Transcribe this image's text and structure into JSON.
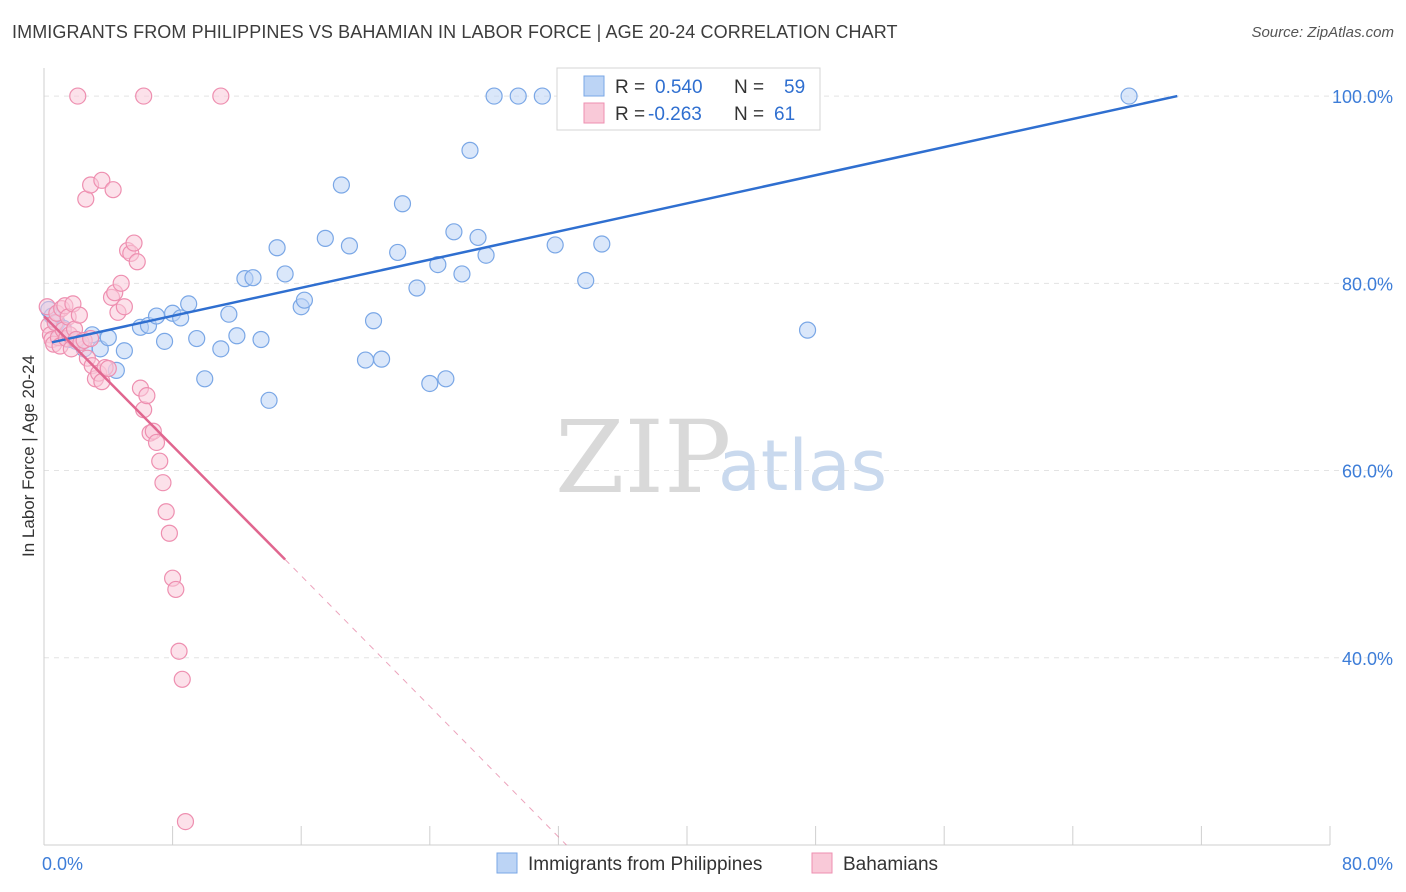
{
  "title": "IMMIGRANTS FROM PHILIPPINES VS BAHAMIAN IN LABOR FORCE | AGE 20-24 CORRELATION CHART",
  "source": "Source: ZipAtlas.com",
  "watermark": {
    "zip": "ZIP",
    "atlas": "atlas"
  },
  "colors": {
    "blue_fill": "#bcd4f5",
    "blue_stroke": "#7aa7e6",
    "blue_line": "#2f6fd0",
    "pink_fill": "#f9c9d8",
    "pink_stroke": "#ee8fb0",
    "pink_line": "#e0668f",
    "tick_text": "#3d7dd8",
    "grid": "#e3e3e3"
  },
  "legend": {
    "r_label": "R =",
    "n_label": "N =",
    "blue": {
      "r": "0.540",
      "n": "59"
    },
    "pink": {
      "r": "-0.263",
      "n": "61"
    }
  },
  "chart_data": {
    "type": "scatter",
    "xlabel": "",
    "ylabel": "In Labor Force | Age 20-24",
    "xlim": [
      0,
      80
    ],
    "ylim": [
      20,
      103
    ],
    "x_tick_labels": [
      {
        "value": 0,
        "label": "0.0%"
      },
      {
        "value": 80,
        "label": "80.0%"
      }
    ],
    "y_tick_labels": [
      {
        "value": 40,
        "label": "40.0%"
      },
      {
        "value": 60,
        "label": "60.0%"
      },
      {
        "value": 80,
        "label": "80.0%"
      },
      {
        "value": 100,
        "label": "100.0%"
      }
    ],
    "grid": true,
    "legend_position": "top-center",
    "series": [
      {
        "name": "Immigrants from Philippines",
        "color": "#bcd4f5",
        "r": 0.54,
        "n": 59,
        "trend": {
          "x0": 0.5,
          "y0": 73.7,
          "x1": 70.5,
          "y1": 100.0
        },
        "points": [
          [
            0.3,
            77.2
          ],
          [
            0.5,
            76.5
          ],
          [
            0.8,
            75.8
          ],
          [
            1.0,
            74.2
          ],
          [
            1.2,
            75.2
          ],
          [
            1.5,
            74.0
          ],
          [
            2.0,
            73.8
          ],
          [
            2.5,
            73.0
          ],
          [
            3.0,
            74.5
          ],
          [
            3.5,
            73.0
          ],
          [
            4.0,
            74.2
          ],
          [
            4.5,
            70.7
          ],
          [
            5.0,
            72.8
          ],
          [
            6.0,
            75.3
          ],
          [
            6.5,
            75.5
          ],
          [
            7.0,
            76.5
          ],
          [
            7.5,
            73.8
          ],
          [
            8.0,
            76.8
          ],
          [
            8.5,
            76.3
          ],
          [
            9.0,
            77.8
          ],
          [
            9.5,
            74.1
          ],
          [
            10.0,
            69.8
          ],
          [
            11.0,
            73.0
          ],
          [
            11.5,
            76.7
          ],
          [
            12.0,
            74.4
          ],
          [
            12.5,
            80.5
          ],
          [
            13.0,
            80.6
          ],
          [
            13.5,
            74.0
          ],
          [
            14.0,
            67.5
          ],
          [
            14.5,
            83.8
          ],
          [
            15.0,
            81.0
          ],
          [
            16.0,
            77.5
          ],
          [
            16.2,
            78.2
          ],
          [
            17.5,
            84.8
          ],
          [
            18.5,
            90.5
          ],
          [
            19.0,
            84.0
          ],
          [
            20.0,
            71.8
          ],
          [
            20.5,
            76.0
          ],
          [
            21.0,
            71.9
          ],
          [
            22.0,
            83.3
          ],
          [
            22.3,
            88.5
          ],
          [
            23.2,
            79.5
          ],
          [
            24.0,
            69.3
          ],
          [
            24.5,
            82.0
          ],
          [
            25.0,
            69.8
          ],
          [
            25.5,
            85.5
          ],
          [
            26.0,
            81.0
          ],
          [
            26.5,
            94.2
          ],
          [
            27.0,
            84.9
          ],
          [
            27.5,
            83.0
          ],
          [
            28.0,
            100.0
          ],
          [
            29.5,
            100.0
          ],
          [
            31.0,
            100.0
          ],
          [
            31.8,
            84.1
          ],
          [
            33.0,
            100.0
          ],
          [
            33.7,
            80.3
          ],
          [
            34.7,
            84.2
          ],
          [
            47.5,
            75.0
          ],
          [
            67.5,
            100.0
          ]
        ]
      },
      {
        "name": "Bahamians",
        "color": "#f9c9d8",
        "r": -0.263,
        "n": 61,
        "trend": {
          "x0": 0.0,
          "y0": 76.5,
          "x1": 15.0,
          "y1": 50.5
        },
        "trend_dashed": {
          "x0": 15.0,
          "y0": 50.5,
          "x1": 32.5,
          "y1": 20.0
        },
        "points": [
          [
            0.2,
            77.5
          ],
          [
            0.3,
            75.5
          ],
          [
            0.4,
            74.5
          ],
          [
            0.5,
            74.0
          ],
          [
            0.6,
            73.5
          ],
          [
            0.7,
            75.8
          ],
          [
            0.8,
            76.8
          ],
          [
            0.9,
            74.2
          ],
          [
            1.0,
            73.3
          ],
          [
            1.1,
            77.3
          ],
          [
            1.2,
            75.0
          ],
          [
            1.3,
            77.6
          ],
          [
            1.4,
            74.1
          ],
          [
            1.5,
            76.4
          ],
          [
            1.6,
            74.5
          ],
          [
            1.7,
            73.0
          ],
          [
            1.8,
            77.8
          ],
          [
            1.9,
            75.1
          ],
          [
            2.0,
            74.0
          ],
          [
            2.2,
            76.6
          ],
          [
            2.3,
            73.7
          ],
          [
            2.5,
            73.9
          ],
          [
            2.7,
            72.0
          ],
          [
            2.9,
            74.1
          ],
          [
            3.0,
            71.2
          ],
          [
            3.2,
            69.8
          ],
          [
            3.4,
            70.4
          ],
          [
            3.6,
            69.5
          ],
          [
            3.8,
            71.0
          ],
          [
            4.0,
            70.9
          ],
          [
            4.2,
            78.5
          ],
          [
            4.4,
            79.0
          ],
          [
            4.6,
            76.9
          ],
          [
            4.8,
            80.0
          ],
          [
            5.0,
            77.5
          ],
          [
            5.2,
            83.5
          ],
          [
            5.4,
            83.2
          ],
          [
            5.6,
            84.3
          ],
          [
            5.8,
            82.3
          ],
          [
            6.0,
            68.8
          ],
          [
            6.2,
            66.5
          ],
          [
            6.4,
            68.0
          ],
          [
            6.6,
            64.0
          ],
          [
            6.8,
            64.2
          ],
          [
            7.0,
            63.0
          ],
          [
            7.2,
            61.0
          ],
          [
            7.4,
            58.7
          ],
          [
            7.6,
            55.6
          ],
          [
            7.8,
            53.3
          ],
          [
            8.0,
            48.5
          ],
          [
            8.2,
            47.3
          ],
          [
            8.4,
            40.7
          ],
          [
            8.6,
            37.7
          ],
          [
            8.8,
            22.5
          ],
          [
            2.1,
            100.0
          ],
          [
            6.2,
            100.0
          ],
          [
            11.0,
            100.0
          ],
          [
            2.6,
            89.0
          ],
          [
            2.9,
            90.5
          ],
          [
            3.6,
            91.0
          ],
          [
            4.3,
            90.0
          ]
        ]
      }
    ]
  }
}
